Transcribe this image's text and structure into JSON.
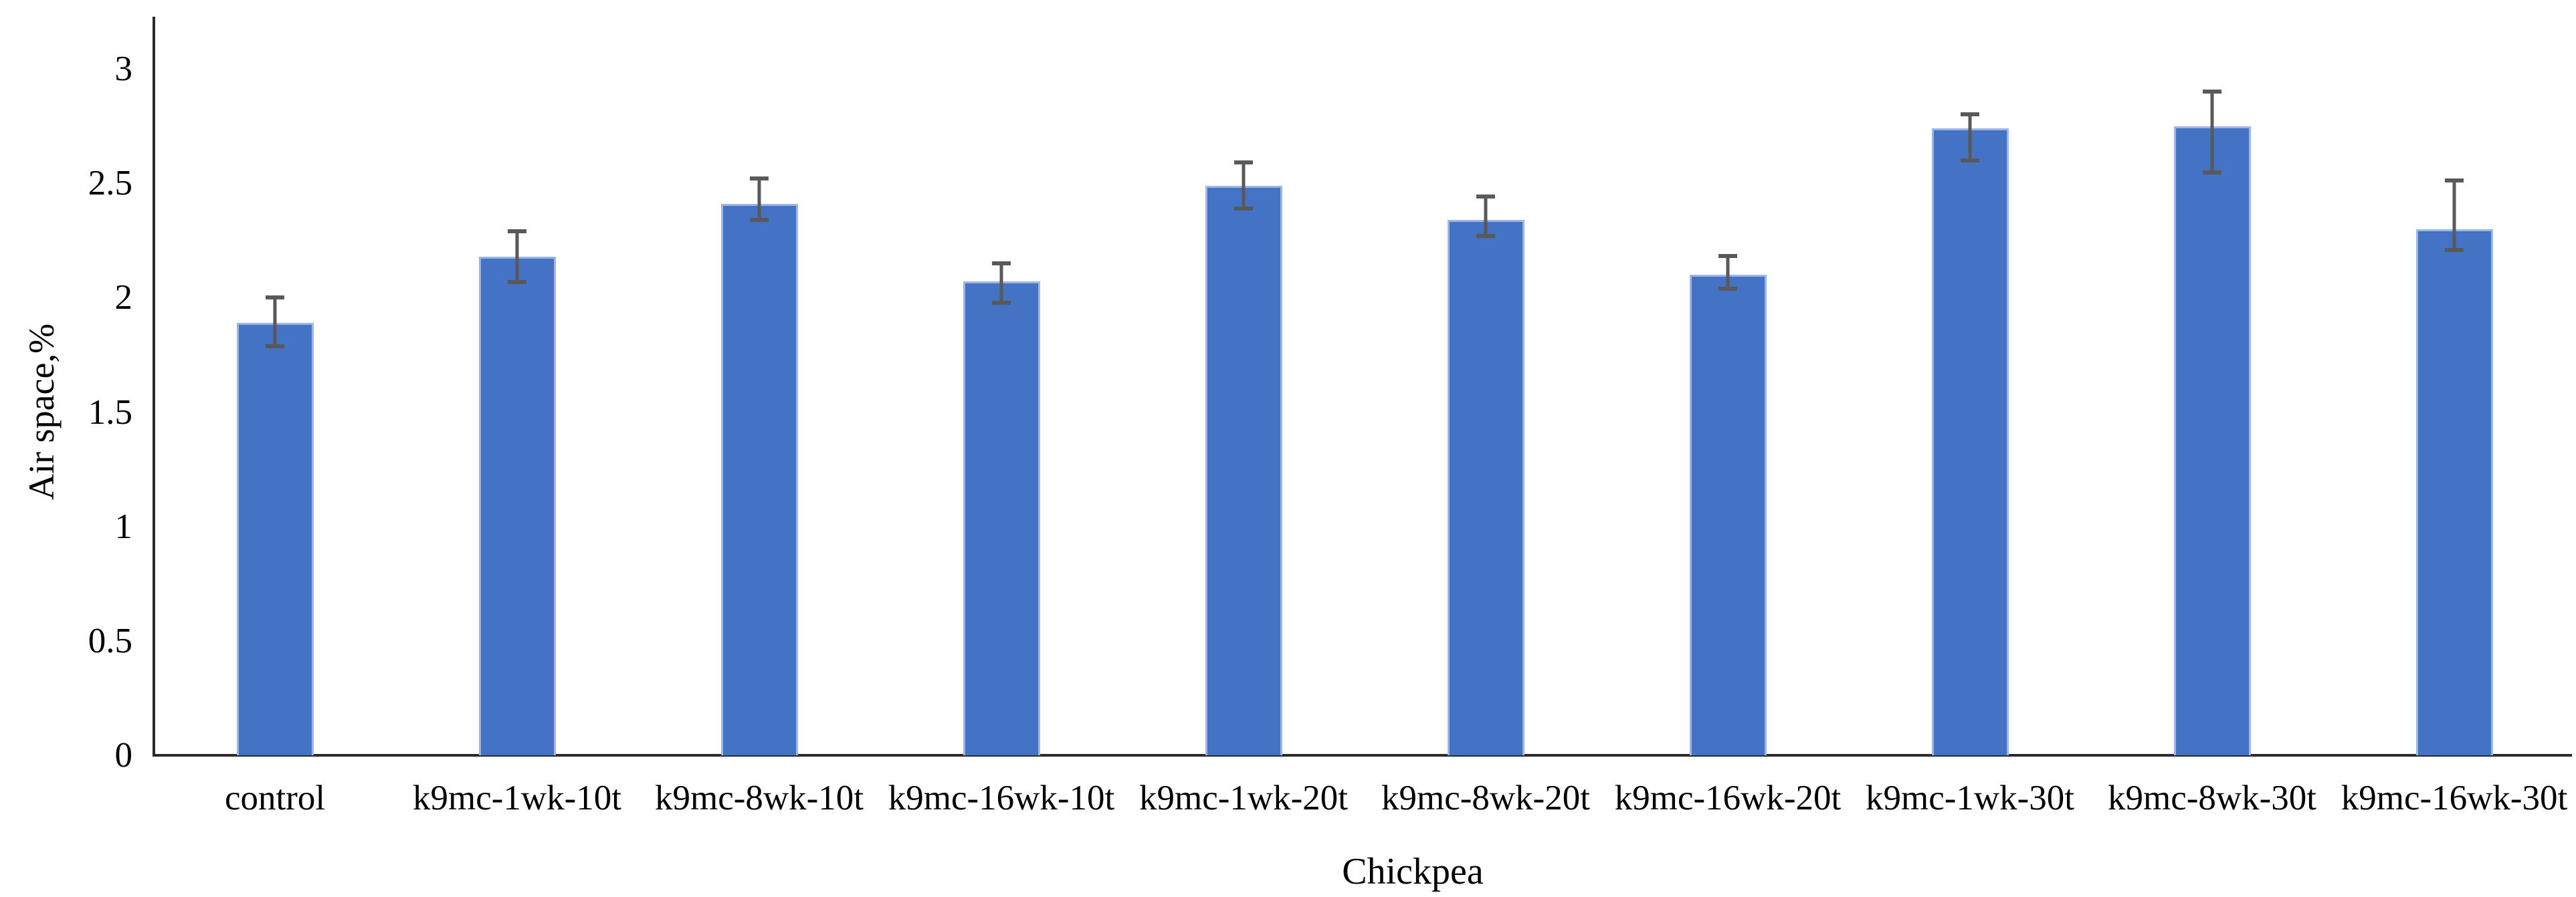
{
  "chart_data": {
    "type": "bar",
    "title": "",
    "xlabel": "Chickpea",
    "ylabel": "Air space,%",
    "categories": [
      "control",
      "k9mc-1wk-10t",
      "k9mc-8wk-10t",
      "k9mc-16wk-10t",
      "k9mc-1wk-20t",
      "k9mc-8wk-20t",
      "k9mc-16wk-20t",
      "k9mc-1wk-30t",
      "k9mc-8wk-30t",
      "k9mc-16wk-30t"
    ],
    "values": [
      1.89,
      2.18,
      2.41,
      2.07,
      2.49,
      2.34,
      2.1,
      2.74,
      2.75,
      2.3
    ],
    "error_low": [
      1.78,
      2.06,
      2.33,
      1.97,
      2.38,
      2.26,
      2.03,
      2.59,
      2.54,
      2.2
    ],
    "error_high": [
      2.01,
      2.3,
      2.53,
      2.16,
      2.6,
      2.45,
      2.19,
      2.81,
      2.91,
      2.52
    ],
    "ylim": [
      0,
      3
    ],
    "yticks": [
      0,
      0.5,
      1,
      1.5,
      2,
      2.5,
      3
    ],
    "grid": "off",
    "legend": "none",
    "bar_color": "#4472C4",
    "bar_border_color": "#9CB7E5",
    "error_bar_color": "#595959",
    "axis_color": "#2b2b2b",
    "text_color": "#000000"
  }
}
